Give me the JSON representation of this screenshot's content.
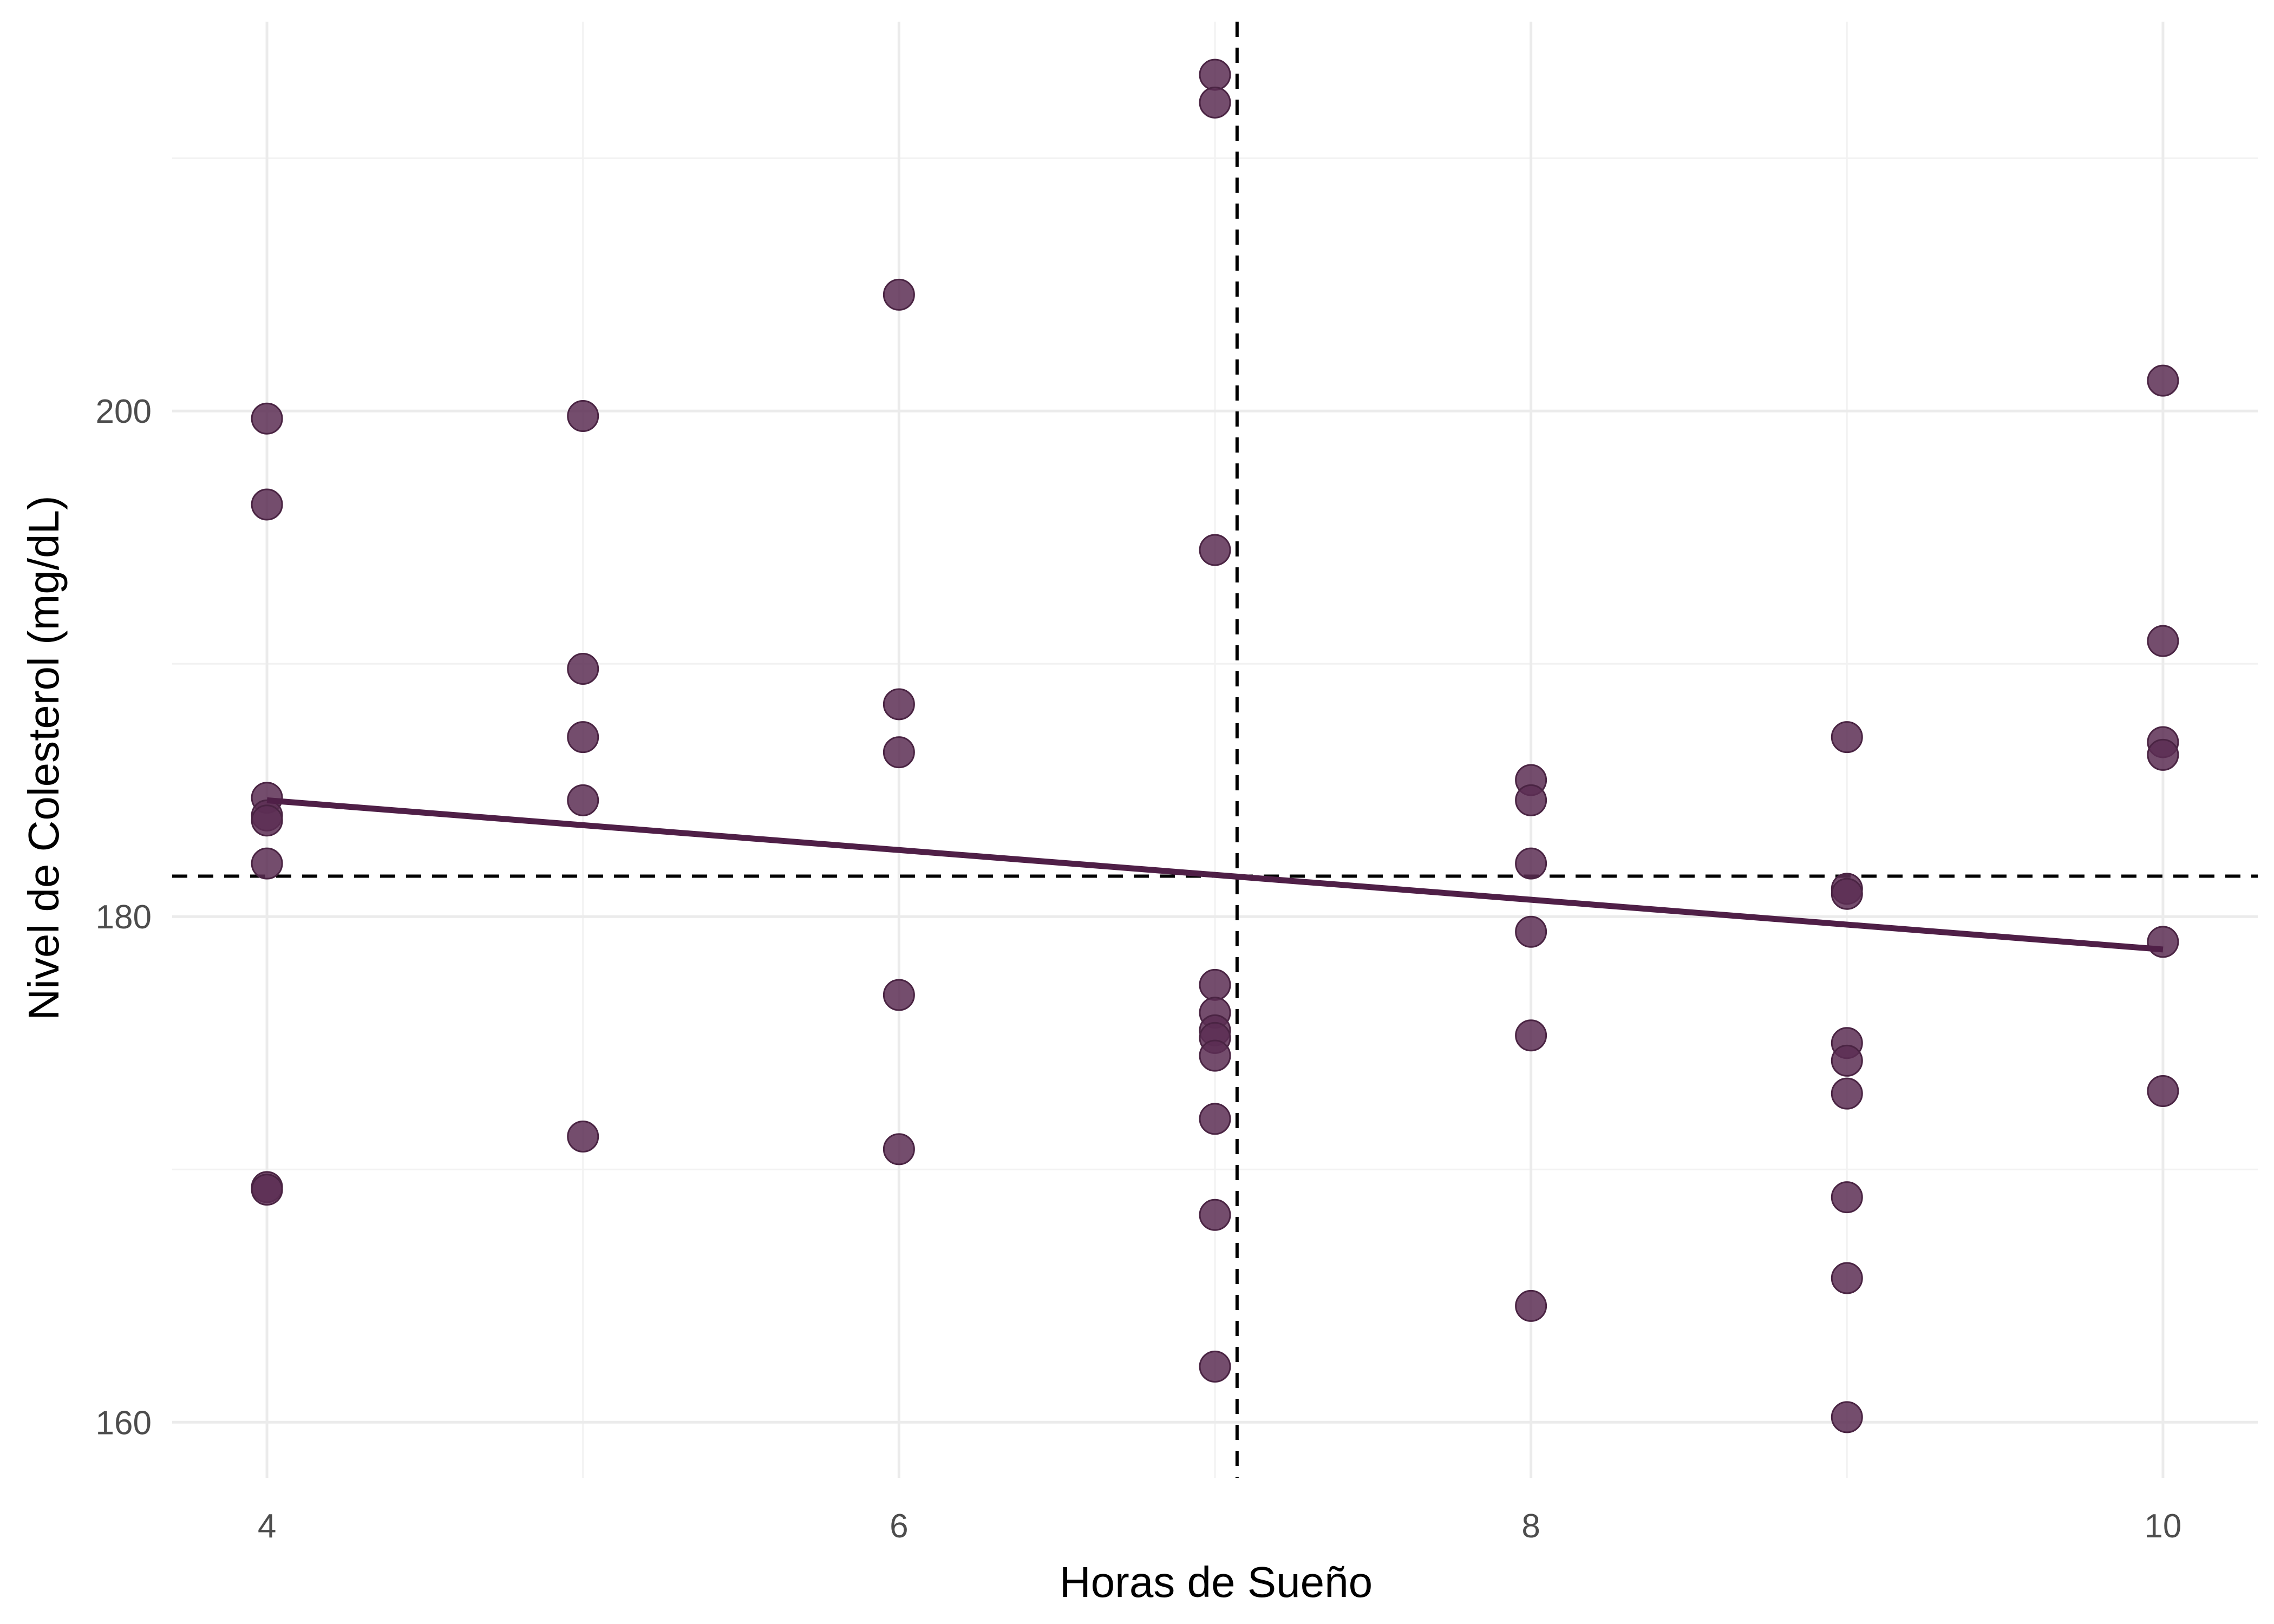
{
  "chart_data": {
    "type": "scatter",
    "xlabel": "Horas de Sueño",
    "ylabel": "Nivel de Colesterol (mg/dL)",
    "xlim": [
      3.7,
      10.3
    ],
    "ylim": [
      157.8,
      215.4
    ],
    "x_ticks": [
      4,
      6,
      8,
      10
    ],
    "x_minor_ticks": [
      5,
      7,
      9
    ],
    "y_ticks": [
      160,
      180,
      200
    ],
    "y_minor_ticks": [
      170,
      190,
      210
    ],
    "x_tick_labels": [
      "4",
      "6",
      "8",
      "10"
    ],
    "y_tick_labels": [
      "160",
      "180",
      "200"
    ],
    "grid": true,
    "point_color": "#5c2e53",
    "line_color": "#4f1f47",
    "points": [
      {
        "x": 4,
        "y": 199.7
      },
      {
        "x": 4,
        "y": 196.3
      },
      {
        "x": 4,
        "y": 184.7
      },
      {
        "x": 4,
        "y": 184.0
      },
      {
        "x": 4,
        "y": 183.8
      },
      {
        "x": 4,
        "y": 182.1
      },
      {
        "x": 4,
        "y": 169.3
      },
      {
        "x": 4,
        "y": 169.2
      },
      {
        "x": 5,
        "y": 199.8
      },
      {
        "x": 5,
        "y": 189.8
      },
      {
        "x": 5,
        "y": 187.1
      },
      {
        "x": 5,
        "y": 184.6
      },
      {
        "x": 5,
        "y": 171.3
      },
      {
        "x": 6,
        "y": 204.6
      },
      {
        "x": 6,
        "y": 188.4
      },
      {
        "x": 6,
        "y": 186.5
      },
      {
        "x": 6,
        "y": 176.9
      },
      {
        "x": 6,
        "y": 170.8
      },
      {
        "x": 7,
        "y": 213.3
      },
      {
        "x": 7,
        "y": 212.2
      },
      {
        "x": 7,
        "y": 194.5
      },
      {
        "x": 7,
        "y": 177.3
      },
      {
        "x": 7,
        "y": 176.2
      },
      {
        "x": 7,
        "y": 175.5
      },
      {
        "x": 7,
        "y": 175.2
      },
      {
        "x": 7,
        "y": 174.5
      },
      {
        "x": 7,
        "y": 172.0
      },
      {
        "x": 7,
        "y": 168.2
      },
      {
        "x": 7,
        "y": 162.2
      },
      {
        "x": 8,
        "y": 185.4
      },
      {
        "x": 8,
        "y": 184.6
      },
      {
        "x": 8,
        "y": 182.1
      },
      {
        "x": 8,
        "y": 179.4
      },
      {
        "x": 8,
        "y": 175.3
      },
      {
        "x": 8,
        "y": 164.6
      },
      {
        "x": 9,
        "y": 187.1
      },
      {
        "x": 9,
        "y": 181.1
      },
      {
        "x": 9,
        "y": 180.9
      },
      {
        "x": 9,
        "y": 175.0
      },
      {
        "x": 9,
        "y": 174.3
      },
      {
        "x": 9,
        "y": 173.0
      },
      {
        "x": 9,
        "y": 168.9
      },
      {
        "x": 9,
        "y": 165.7
      },
      {
        "x": 9,
        "y": 160.2
      },
      {
        "x": 10,
        "y": 201.2
      },
      {
        "x": 10,
        "y": 190.9
      },
      {
        "x": 10,
        "y": 186.9
      },
      {
        "x": 10,
        "y": 186.4
      },
      {
        "x": 10,
        "y": 179.0
      },
      {
        "x": 10,
        "y": 173.1
      }
    ],
    "fit_line": {
      "x": [
        4,
        10
      ],
      "y": [
        184.6,
        178.7
      ]
    },
    "reference_lines": {
      "x_mean": 7.07,
      "y_mean": 181.6
    }
  }
}
